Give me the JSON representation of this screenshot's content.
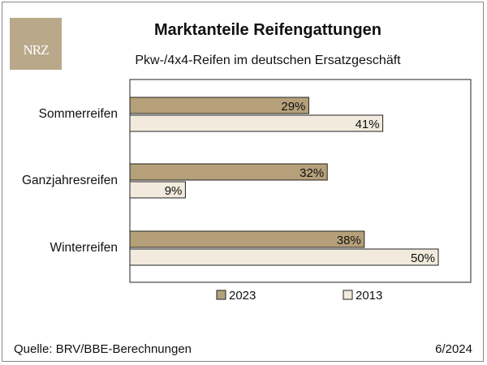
{
  "header": {
    "logo_text": "NRZ",
    "title": "Marktanteile Reifengattungen",
    "subtitle": "Pkw-/4x4-Reifen im deutschen Ersatzgeschäft"
  },
  "footer": {
    "source": "Quelle: BRV/BBE-Berechnungen",
    "date": "6/2024"
  },
  "colors": {
    "series_2023": "#b5a07a",
    "series_2013": "#f2ebdd",
    "bar_border": "#222222",
    "logo_bg": "#b9a98a"
  },
  "chart_data": {
    "type": "bar",
    "orientation": "horizontal",
    "categories": [
      "Sommerreifen",
      "Ganzjahresreifen",
      "Winterreifen"
    ],
    "series": [
      {
        "name": "2023",
        "values": [
          29,
          32,
          38
        ]
      },
      {
        "name": "2013",
        "values": [
          41,
          9,
          50
        ]
      }
    ],
    "value_suffix": "%",
    "xlim": [
      0,
      60
    ],
    "grid": false,
    "legend": "bottom"
  }
}
